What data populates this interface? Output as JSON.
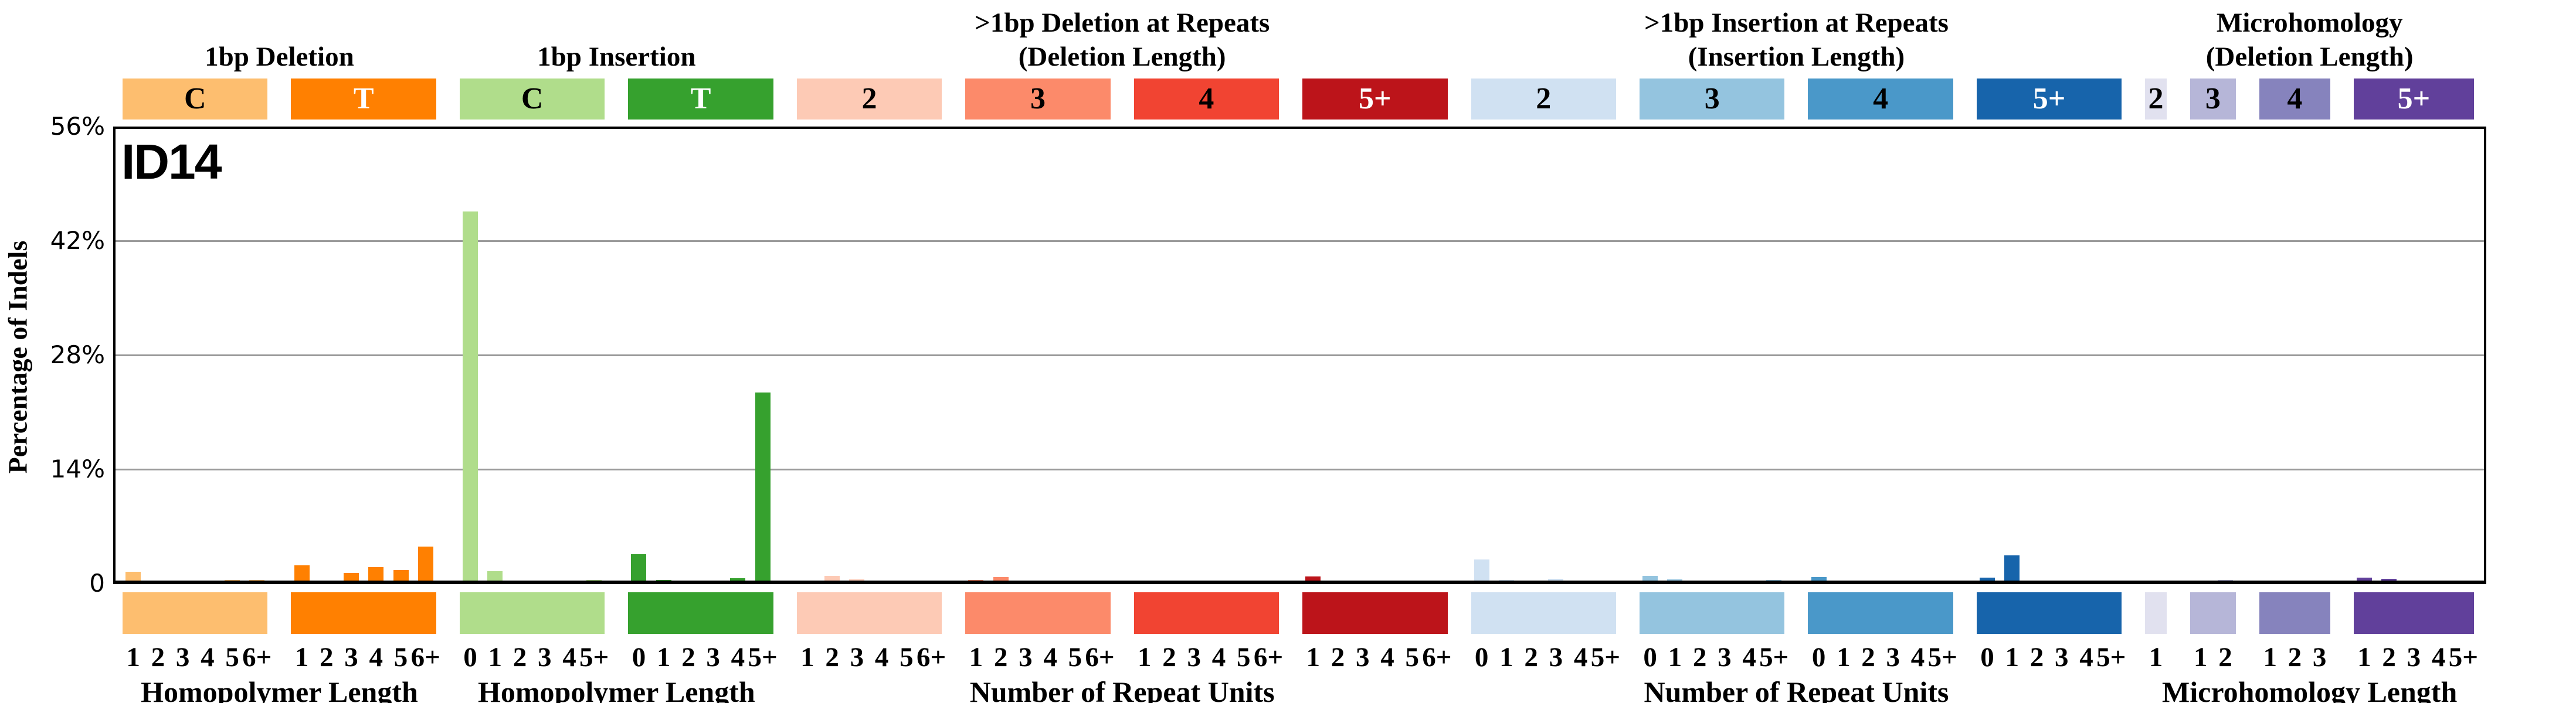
{
  "chart_data": {
    "type": "bar",
    "title": "ID14",
    "ylabel": "Percentage of Indels",
    "ylim": [
      0,
      56
    ],
    "yticks": [
      {
        "value": 56,
        "label": "56%"
      },
      {
        "value": 42,
        "label": "42%"
      },
      {
        "value": 28,
        "label": "28%"
      },
      {
        "value": 14,
        "label": "14%"
      },
      {
        "value": 0,
        "label": "0"
      }
    ],
    "gridlines": [
      14,
      28,
      42
    ],
    "grid": true,
    "legend": "none",
    "sections": [
      {
        "title_lines": [
          "1bp Deletion"
        ],
        "xlabel": "Homopolymer Length",
        "groups": [
          {
            "label": "C",
            "color": "#FDBE6F",
            "label_color": "#000000",
            "ticks": [
              "1",
              "2",
              "3",
              "4",
              "5",
              "6+"
            ],
            "values": [
              1.2,
              0.15,
              0.08,
              0.08,
              0.2,
              0.2
            ]
          },
          {
            "label": "T",
            "color": "#FF8001",
            "label_color": "#FFFFFF",
            "ticks": [
              "1",
              "2",
              "3",
              "4",
              "5",
              "6+"
            ],
            "values": [
              2.0,
              0.1,
              1.05,
              1.8,
              1.45,
              4.3
            ]
          }
        ]
      },
      {
        "title_lines": [
          "1bp Insertion"
        ],
        "xlabel": "Homopolymer Length",
        "groups": [
          {
            "label": "C",
            "color": "#B0DD8B",
            "label_color": "#000000",
            "ticks": [
              "0",
              "1",
              "2",
              "3",
              "4",
              "5+"
            ],
            "values": [
              45.4,
              1.3,
              0.05,
              0.1,
              0.1,
              0.2
            ]
          },
          {
            "label": "T",
            "color": "#36A12E",
            "label_color": "#FFFFFF",
            "ticks": [
              "0",
              "1",
              "2",
              "3",
              "4",
              "5+"
            ],
            "values": [
              3.4,
              0.2,
              0.1,
              0.15,
              0.4,
              23.2
            ]
          }
        ]
      },
      {
        "title_lines": [
          ">1bp Deletion at Repeats",
          "(Deletion Length)"
        ],
        "xlabel": "Number of Repeat Units",
        "groups": [
          {
            "label": "2",
            "color": "#FDCAB5",
            "label_color": "#000000",
            "ticks": [
              "1",
              "2",
              "3",
              "4",
              "5",
              "6+"
            ],
            "values": [
              0.03,
              0.7,
              0.27,
              0.03,
              0.15,
              0.03
            ]
          },
          {
            "label": "3",
            "color": "#FC8A6A",
            "label_color": "#000000",
            "ticks": [
              "1",
              "2",
              "3",
              "4",
              "5",
              "6+"
            ],
            "values": [
              0.2,
              0.55,
              0.03,
              0.12,
              0.03,
              0.03
            ]
          },
          {
            "label": "4",
            "color": "#F14432",
            "label_color": "#000000",
            "ticks": [
              "1",
              "2",
              "3",
              "4",
              "5",
              "6+"
            ],
            "values": [
              0.03,
              0.12,
              0.1,
              0.03,
              0.02,
              0.02
            ]
          },
          {
            "label": "5+",
            "color": "#BC141A",
            "label_color": "#FFFFFF",
            "ticks": [
              "1",
              "2",
              "3",
              "4",
              "5",
              "6+"
            ],
            "values": [
              0.65,
              0.05,
              0.02,
              0.02,
              0.02,
              0.02
            ]
          }
        ]
      },
      {
        "title_lines": [
          ">1bp Insertion at Repeats",
          "(Insertion Length)"
        ],
        "xlabel": "Number of Repeat Units",
        "groups": [
          {
            "label": "2",
            "color": "#D0E1F2",
            "label_color": "#000000",
            "ticks": [
              "0",
              "1",
              "2",
              "3",
              "4",
              "5+"
            ],
            "values": [
              2.7,
              0.2,
              0.1,
              0.35,
              0.1,
              0.03
            ]
          },
          {
            "label": "3",
            "color": "#94C4DF",
            "label_color": "#000000",
            "ticks": [
              "0",
              "1",
              "2",
              "3",
              "4",
              "5+"
            ],
            "values": [
              0.75,
              0.3,
              0.05,
              0.1,
              0.05,
              0.2
            ]
          },
          {
            "label": "4",
            "color": "#4A98C9",
            "label_color": "#000000",
            "ticks": [
              "0",
              "1",
              "2",
              "3",
              "4",
              "5+"
            ],
            "values": [
              0.6,
              0.15,
              0.08,
              0.1,
              0.02,
              0.02
            ]
          },
          {
            "label": "5+",
            "color": "#1764AB",
            "label_color": "#FFFFFF",
            "ticks": [
              "0",
              "1",
              "2",
              "3",
              "4",
              "5+"
            ],
            "values": [
              0.5,
              3.2,
              0.1,
              0.02,
              0.02,
              0.02
            ]
          }
        ]
      },
      {
        "title_lines": [
          "Microhomology",
          "(Deletion Length)"
        ],
        "xlabel": "Microhomology Length",
        "groups": [
          {
            "label": "2",
            "color": "#E1E1EF",
            "label_color": "#000000",
            "ticks": [
              "1"
            ],
            "values": [
              0.1
            ]
          },
          {
            "label": "3",
            "color": "#B6B6D8",
            "label_color": "#000000",
            "ticks": [
              "1",
              "2"
            ],
            "values": [
              0.1,
              0.2
            ]
          },
          {
            "label": "4",
            "color": "#8683BD",
            "label_color": "#000000",
            "ticks": [
              "1",
              "2",
              "3"
            ],
            "values": [
              0.02,
              0.08,
              0.15
            ]
          },
          {
            "label": "5+",
            "color": "#61409B",
            "label_color": "#FFFFFF",
            "ticks": [
              "1",
              "2",
              "3",
              "4",
              "5+"
            ],
            "values": [
              0.5,
              0.35,
              0.12,
              0.02,
              0.05
            ]
          }
        ]
      }
    ]
  }
}
